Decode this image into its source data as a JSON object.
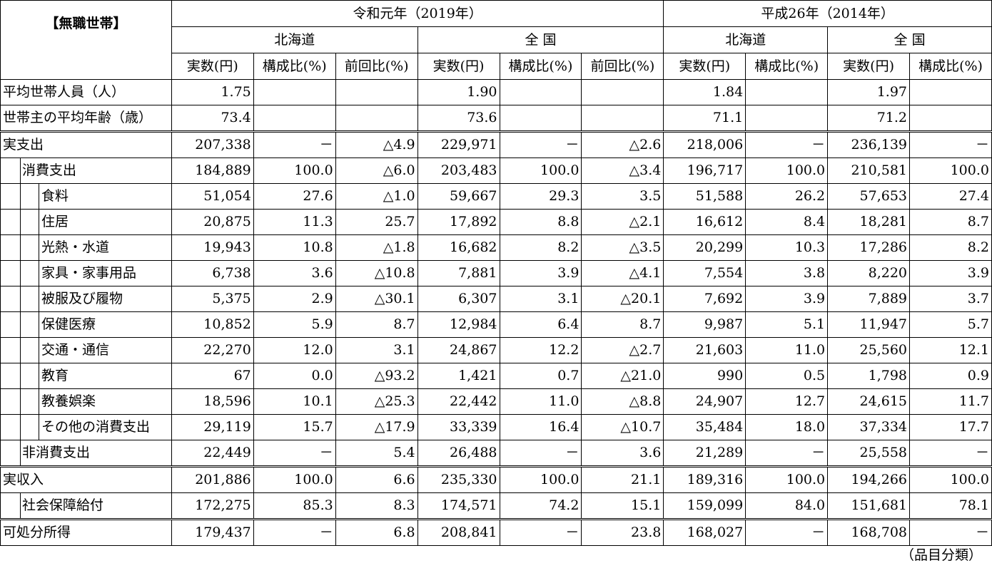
{
  "corner_label": "【無職世帯】",
  "period_headers": {
    "r1": "令和元年（2019年）",
    "h26": "平成26年（2014年）"
  },
  "region_headers": {
    "r1_hokkaido": "北海道",
    "r1_zenkoku": "全 国",
    "h26_hokkaido": "北海道",
    "h26_zenkoku": "全 国"
  },
  "col_headers": {
    "jissu": "実数(円)",
    "kousei": "構成比(%)",
    "zenkai": "前回比(%)"
  },
  "rows": [
    {
      "label": "平均世帯人員（人）",
      "v": [
        "1.75",
        "",
        "",
        "1.90",
        "",
        "",
        "1.84",
        "",
        "1.97",
        ""
      ]
    },
    {
      "label": "世帯主の平均年齢（歳）",
      "v": [
        "73.4",
        "",
        "",
        "73.6",
        "",
        "",
        "71.1",
        "",
        "71.2",
        ""
      ]
    },
    {
      "label": "実支出",
      "v": [
        "207,338",
        "－",
        "△4.9",
        "229,971",
        "－",
        "△2.6",
        "218,006",
        "－",
        "236,139",
        "－"
      ]
    },
    {
      "label": "消費支出",
      "v": [
        "184,889",
        "100.0",
        "△6.0",
        "203,483",
        "100.0",
        "△3.4",
        "196,717",
        "100.0",
        "210,581",
        "100.0"
      ]
    },
    {
      "label": "食料",
      "v": [
        "51,054",
        "27.6",
        "△1.0",
        "59,667",
        "29.3",
        "3.5",
        "51,588",
        "26.2",
        "57,653",
        "27.4"
      ]
    },
    {
      "label": "住居",
      "v": [
        "20,875",
        "11.3",
        "25.7",
        "17,892",
        "8.8",
        "△2.1",
        "16,612",
        "8.4",
        "18,281",
        "8.7"
      ]
    },
    {
      "label": "光熱・水道",
      "v": [
        "19,943",
        "10.8",
        "△1.8",
        "16,682",
        "8.2",
        "△3.5",
        "20,299",
        "10.3",
        "17,286",
        "8.2"
      ]
    },
    {
      "label": "家具・家事用品",
      "v": [
        "6,738",
        "3.6",
        "△10.8",
        "7,881",
        "3.9",
        "△4.1",
        "7,554",
        "3.8",
        "8,220",
        "3.9"
      ]
    },
    {
      "label": "被服及び履物",
      "v": [
        "5,375",
        "2.9",
        "△30.1",
        "6,307",
        "3.1",
        "△20.1",
        "7,692",
        "3.9",
        "7,889",
        "3.7"
      ]
    },
    {
      "label": "保健医療",
      "v": [
        "10,852",
        "5.9",
        "8.7",
        "12,984",
        "6.4",
        "8.7",
        "9,987",
        "5.1",
        "11,947",
        "5.7"
      ]
    },
    {
      "label": "交通・通信",
      "v": [
        "22,270",
        "12.0",
        "3.1",
        "24,867",
        "12.2",
        "△2.7",
        "21,603",
        "11.0",
        "25,560",
        "12.1"
      ]
    },
    {
      "label": "教育",
      "v": [
        "67",
        "0.0",
        "△93.2",
        "1,421",
        "0.7",
        "△21.0",
        "990",
        "0.5",
        "1,798",
        "0.9"
      ]
    },
    {
      "label": "教養娯楽",
      "v": [
        "18,596",
        "10.1",
        "△25.3",
        "22,442",
        "11.0",
        "△8.8",
        "24,907",
        "12.7",
        "24,615",
        "11.7"
      ]
    },
    {
      "label": "その他の消費支出",
      "v": [
        "29,119",
        "15.7",
        "△17.9",
        "33,339",
        "16.4",
        "△10.7",
        "35,484",
        "18.0",
        "37,334",
        "17.7"
      ]
    },
    {
      "label": "非消費支出",
      "v": [
        "22,449",
        "－",
        "5.4",
        "26,488",
        "－",
        "3.6",
        "21,289",
        "－",
        "25,558",
        "－"
      ]
    },
    {
      "label": "実収入",
      "v": [
        "201,886",
        "100.0",
        "6.6",
        "235,330",
        "100.0",
        "21.1",
        "189,316",
        "100.0",
        "194,266",
        "100.0"
      ]
    },
    {
      "label": "社会保障給付",
      "v": [
        "172,275",
        "85.3",
        "8.3",
        "174,571",
        "74.2",
        "15.1",
        "159,099",
        "84.0",
        "151,681",
        "78.1"
      ]
    },
    {
      "label": "可処分所得",
      "v": [
        "179,437",
        "－",
        "6.8",
        "208,841",
        "－",
        "23.8",
        "168,027",
        "－",
        "168,708",
        "－"
      ]
    }
  ],
  "footnote": "（品目分類）"
}
